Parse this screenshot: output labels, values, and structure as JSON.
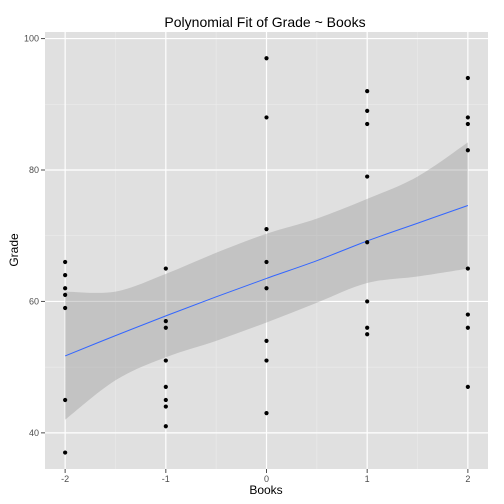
{
  "chart_data": {
    "type": "scatter",
    "title": "Polynomial Fit of Grade ~ Books",
    "xlabel": "Books",
    "ylabel": "Grade",
    "xlim": [
      -2.2,
      2.2
    ],
    "ylim": [
      34.5,
      101
    ],
    "x_ticks": [
      -2,
      -1,
      0,
      1,
      2
    ],
    "x_tick_labels": [
      "-2",
      "-1",
      "0",
      "1",
      "2"
    ],
    "y_ticks": [
      40,
      60,
      80,
      100
    ],
    "y_tick_labels": [
      "40",
      "60",
      "80",
      "100"
    ],
    "grid": true,
    "colors": {
      "panel": "#e0e0e0",
      "grid_major": "#ffffff",
      "grid_minor": "#ebebeb",
      "points": "#000000",
      "fit_line": "#3366ff",
      "ribbon": "#999999",
      "tick": "#4d4d4d"
    },
    "points": [
      {
        "x": -2,
        "y": 66
      },
      {
        "x": -2,
        "y": 64
      },
      {
        "x": -2,
        "y": 62
      },
      {
        "x": -2,
        "y": 61
      },
      {
        "x": -2,
        "y": 59
      },
      {
        "x": -2,
        "y": 45
      },
      {
        "x": -2,
        "y": 37
      },
      {
        "x": -1,
        "y": 65
      },
      {
        "x": -1,
        "y": 57
      },
      {
        "x": -1,
        "y": 56
      },
      {
        "x": -1,
        "y": 51
      },
      {
        "x": -1,
        "y": 47
      },
      {
        "x": -1,
        "y": 45
      },
      {
        "x": -1,
        "y": 44
      },
      {
        "x": -1,
        "y": 41
      },
      {
        "x": 0,
        "y": 97
      },
      {
        "x": 0,
        "y": 88
      },
      {
        "x": 0,
        "y": 71
      },
      {
        "x": 0,
        "y": 66
      },
      {
        "x": 0,
        "y": 62
      },
      {
        "x": 0,
        "y": 54
      },
      {
        "x": 0,
        "y": 51
      },
      {
        "x": 0,
        "y": 43
      },
      {
        "x": 1,
        "y": 92
      },
      {
        "x": 1,
        "y": 89
      },
      {
        "x": 1,
        "y": 87
      },
      {
        "x": 1,
        "y": 79
      },
      {
        "x": 1,
        "y": 69
      },
      {
        "x": 1,
        "y": 60
      },
      {
        "x": 1,
        "y": 56
      },
      {
        "x": 1,
        "y": 55
      },
      {
        "x": 2,
        "y": 94
      },
      {
        "x": 2,
        "y": 88
      },
      {
        "x": 2,
        "y": 87
      },
      {
        "x": 2,
        "y": 83
      },
      {
        "x": 2,
        "y": 65
      },
      {
        "x": 2,
        "y": 58
      },
      {
        "x": 2,
        "y": 56
      },
      {
        "x": 2,
        "y": 47
      }
    ],
    "fit": {
      "x": [
        -2,
        -1.5,
        -1,
        -0.5,
        0,
        0.5,
        1,
        1.5,
        2
      ],
      "y": [
        51.7,
        54.8,
        57.8,
        60.7,
        63.5,
        66.2,
        69.2,
        71.9,
        74.6
      ],
      "lower": [
        42.0,
        48.0,
        51.5,
        54.0,
        56.8,
        59.8,
        62.8,
        63.8,
        65.0
      ],
      "upper": [
        61.5,
        61.5,
        64.2,
        67.4,
        70.3,
        72.6,
        75.6,
        79.0,
        84.2
      ]
    }
  }
}
